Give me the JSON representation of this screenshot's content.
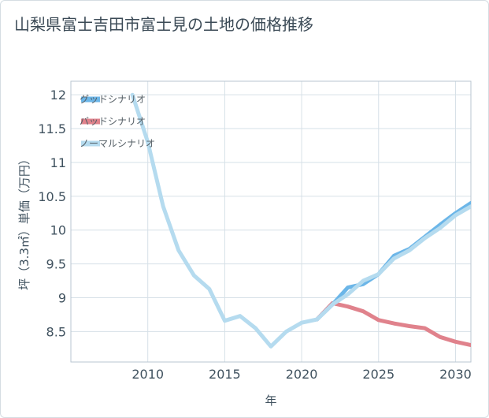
{
  "chart_data": {
    "type": "line",
    "title": "山梨県富士吉田市富士見の土地の価格推移",
    "xlabel": "年",
    "ylabel": "坪（3.3㎡）単価（万円）",
    "xlim": [
      2005,
      2031
    ],
    "ylim": [
      8.05,
      12.2
    ],
    "xticks": [
      2010,
      2015,
      2020,
      2025,
      2030
    ],
    "yticks": [
      8.5,
      9,
      9.5,
      10,
      10.5,
      11,
      11.5,
      12
    ],
    "ytick_labels": [
      "8.5",
      "9",
      "9.5",
      "10",
      "10.5",
      "11",
      "11.5",
      "12"
    ],
    "grid": true,
    "legend_position": "top-left",
    "series": [
      {
        "name": "グッドシナリオ",
        "color": "#6cb6e8",
        "x": [
          2021,
          2022,
          2023,
          2024,
          2025,
          2026,
          2027,
          2028,
          2029,
          2030,
          2031
        ],
        "values": [
          8.68,
          8.9,
          9.15,
          9.2,
          9.35,
          9.62,
          9.72,
          9.9,
          10.08,
          10.25,
          10.4
        ]
      },
      {
        "name": "バッドシナリオ",
        "color": "#e0828c",
        "x": [
          2021,
          2022,
          2023,
          2024,
          2025,
          2026,
          2027,
          2028,
          2029,
          2030,
          2031
        ],
        "values": [
          8.68,
          8.92,
          8.87,
          8.8,
          8.67,
          8.62,
          8.58,
          8.55,
          8.42,
          8.35,
          8.3
        ]
      },
      {
        "name": "ノーマルシナリオ",
        "color": "#b5dbef",
        "x": [
          2009,
          2010,
          2011,
          2012,
          2013,
          2014,
          2015,
          2016,
          2017,
          2018,
          2019,
          2020,
          2021,
          2022,
          2023,
          2024,
          2025,
          2026,
          2027,
          2028,
          2029,
          2030,
          2031
        ],
        "values": [
          12.0,
          11.3,
          10.35,
          9.7,
          9.33,
          9.13,
          8.66,
          8.73,
          8.55,
          8.28,
          8.5,
          8.63,
          8.68,
          8.9,
          9.05,
          9.25,
          9.35,
          9.58,
          9.7,
          9.88,
          10.03,
          10.22,
          10.35
        ]
      }
    ]
  }
}
